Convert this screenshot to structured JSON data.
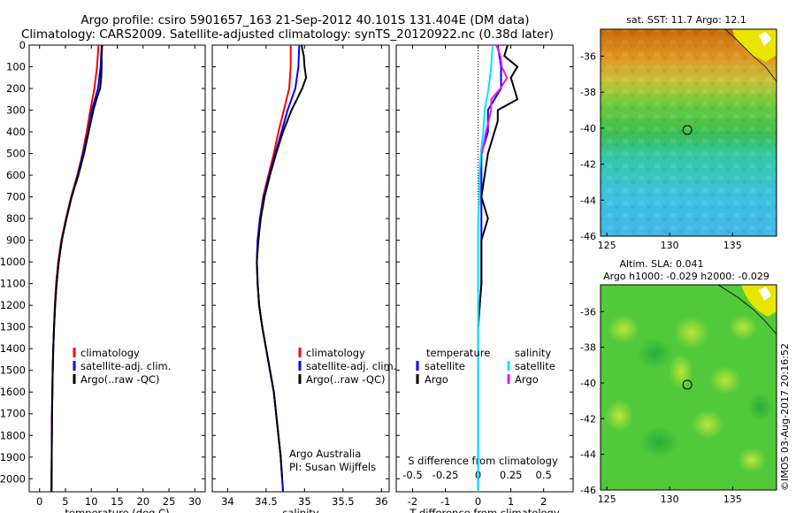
{
  "header": {
    "line1": "Argo profile: csiro 5901657_163 21-Sep-2012 40.101S 131.404E (DM data)",
    "line2": "Climatology: CARS2009. Satellite-adjusted climatology: synTS_20120922.nc (0.38d later)"
  },
  "colors": {
    "climatology": "#ff0000",
    "satellite": "#0000ff",
    "argo": "#000000",
    "sal_sat": "#00e5ff",
    "sal_argo": "#e619e6"
  },
  "legend_profile": [
    "climatology",
    "satellite-adj. clim.",
    "Argo(..raw -QC)"
  ],
  "legend_diff": {
    "temp_title": "temperature",
    "sal_title": "salinity",
    "satellite": "satellite",
    "argo": "Argo"
  },
  "credits": {
    "line1": "Argo Australia",
    "line2": "PI: Susan Wijffels"
  },
  "sst_title": "sat. SST: 11.7 Argo: 12.1",
  "sla_title1": "Altim. SLA: 0.041",
  "sla_title2": "Argo h1000: -0.029 h2000: -0.029",
  "stamp": "©IMOS 03-Aug-2017 20:16:52",
  "chart_data": [
    {
      "type": "line",
      "xlabel": "temperature (deg C)",
      "xticks": [
        0,
        5,
        10,
        15,
        20,
        25,
        30
      ],
      "xlim": [
        -2,
        32
      ],
      "yticks": [
        0,
        100,
        200,
        300,
        400,
        500,
        600,
        700,
        800,
        900,
        1000,
        1100,
        1200,
        1300,
        1400,
        1500,
        1600,
        1700,
        1800,
        1900,
        2000
      ],
      "ylim": [
        2060,
        0
      ],
      "series": [
        {
          "name": "climatology",
          "color": "#ff0000",
          "depth": [
            0,
            100,
            200,
            300,
            400,
            500,
            600,
            700,
            800,
            900,
            1000,
            1100,
            1200,
            1300,
            1400,
            1500,
            1700,
            2060
          ],
          "values": [
            11.4,
            11.1,
            10.6,
            9.8,
            9.1,
            8.3,
            7.3,
            6.1,
            5.1,
            4.2,
            3.6,
            3.2,
            2.95,
            2.8,
            2.65,
            2.55,
            2.4,
            2.3
          ]
        },
        {
          "name": "satellite-adj. clim.",
          "color": "#0000ff",
          "depth": [
            0,
            100,
            200,
            300,
            400,
            500,
            600,
            700,
            800,
            900,
            1000,
            1100,
            1200,
            1300,
            1400,
            1500,
            1700,
            2060
          ],
          "values": [
            12.0,
            11.8,
            11.3,
            10.1,
            9.4,
            8.4,
            7.4,
            6.2,
            5.2,
            4.3,
            3.7,
            3.3,
            3.0,
            2.8,
            2.65,
            2.55,
            2.4,
            2.3
          ]
        },
        {
          "name": "Argo(..raw -QC)",
          "color": "#000000",
          "depth": [
            0,
            50,
            100,
            150,
            200,
            250,
            300,
            400,
            500,
            600,
            700,
            800,
            900,
            1000,
            1100,
            1200,
            1300,
            1400,
            1500,
            1700,
            2060
          ],
          "values": [
            12.1,
            12.0,
            12.0,
            11.9,
            11.7,
            11.0,
            10.4,
            9.5,
            8.6,
            7.5,
            6.2,
            5.2,
            4.3,
            3.7,
            3.3,
            3.0,
            2.8,
            2.65,
            2.55,
            2.4,
            2.3
          ]
        }
      ]
    },
    {
      "type": "line",
      "xlabel": "salinity",
      "xticks": [
        34,
        34.5,
        35,
        35.5,
        36
      ],
      "xlim": [
        33.8,
        36.1
      ],
      "yticks": [
        0,
        100,
        200,
        300,
        400,
        500,
        600,
        700,
        800,
        900,
        1000,
        1100,
        1200,
        1300,
        1400,
        1500,
        1600,
        1700,
        1800,
        1900,
        2000
      ],
      "ylim": [
        2060,
        0
      ],
      "series": [
        {
          "name": "climatology",
          "color": "#ff0000",
          "depth": [
            0,
            100,
            200,
            300,
            400,
            500,
            600,
            700,
            800,
            900,
            1000,
            1100,
            1200,
            1300,
            1400,
            1500,
            1600,
            1700,
            1800,
            1900,
            2060
          ],
          "values": [
            34.82,
            34.82,
            34.8,
            34.73,
            34.66,
            34.6,
            34.53,
            34.46,
            34.42,
            34.39,
            34.38,
            34.39,
            34.41,
            34.45,
            34.5,
            34.55,
            34.6,
            34.63,
            34.66,
            34.69,
            34.72
          ]
        },
        {
          "name": "satellite-adj. clim.",
          "color": "#0000ff",
          "depth": [
            0,
            100,
            200,
            300,
            400,
            500,
            600,
            700,
            800,
            900,
            1000,
            1100,
            1200,
            1300,
            1400,
            1500,
            1600,
            1700,
            1800,
            1900,
            2060
          ],
          "values": [
            34.93,
            34.92,
            34.88,
            34.78,
            34.7,
            34.62,
            34.54,
            34.47,
            34.42,
            34.39,
            34.38,
            34.39,
            34.41,
            34.45,
            34.5,
            34.55,
            34.6,
            34.63,
            34.66,
            34.69,
            34.72
          ]
        },
        {
          "name": "Argo(..raw -QC)",
          "color": "#000000",
          "depth": [
            0,
            50,
            100,
            150,
            200,
            250,
            300,
            400,
            500,
            600,
            700,
            800,
            900,
            1000,
            1100,
            1200,
            1300,
            1400,
            1500,
            1600,
            1700,
            1800,
            1900,
            2000
          ],
          "values": [
            34.96,
            34.99,
            35.0,
            35.02,
            34.97,
            34.9,
            34.83,
            34.72,
            34.63,
            34.55,
            34.48,
            34.43,
            34.4,
            34.38,
            34.39,
            34.41,
            34.45,
            34.5,
            34.55,
            34.6,
            34.63,
            34.66,
            34.69,
            34.71
          ]
        }
      ]
    },
    {
      "type": "line",
      "xlabel": "T difference from climatology",
      "xlabel_top": "S difference from climatology",
      "xticks": [
        -2,
        -1,
        0,
        1,
        2
      ],
      "xlim": [
        -2.5,
        2.9
      ],
      "xticks_top": [
        -0.5,
        -0.25,
        0,
        0.25,
        0.5
      ],
      "yticks": [
        0,
        100,
        200,
        300,
        400,
        500,
        600,
        700,
        800,
        900,
        1000,
        1100,
        1200,
        1300,
        1400,
        1500,
        1600,
        1700,
        1800,
        1900,
        2000
      ],
      "ylim": [
        2060,
        0
      ],
      "series": [
        {
          "name": "temperature satellite",
          "color": "#0000ff",
          "depth": [
            0,
            100,
            200,
            300,
            400,
            500,
            600,
            700,
            800,
            900,
            1000,
            1100,
            1200,
            1300,
            1500,
            2060
          ],
          "values": [
            0.6,
            0.7,
            0.7,
            0.3,
            0.3,
            0.1,
            0.1,
            0.1,
            0.1,
            0.1,
            0.1,
            0.1,
            0.05,
            0.0,
            0.0,
            0.0
          ]
        },
        {
          "name": "temperature Argo",
          "color": "#000000",
          "depth": [
            0,
            50,
            100,
            150,
            200,
            250,
            300,
            350,
            400,
            500,
            600,
            700,
            800,
            900,
            1000,
            1100,
            1200,
            1300
          ],
          "values": [
            0.9,
            0.8,
            1.2,
            1.0,
            1.1,
            1.2,
            0.6,
            0.6,
            0.5,
            0.3,
            0.2,
            0.1,
            0.3,
            0.1,
            0.1,
            0.1,
            0.05,
            0.0
          ]
        },
        {
          "name": "salinity satellite",
          "color": "#00e5ff",
          "depth": [
            0,
            100,
            200,
            300,
            400,
            500,
            600,
            700,
            800,
            900,
            1000,
            1100,
            1200,
            1300,
            1500,
            2060
          ],
          "values": [
            0.11,
            0.1,
            0.08,
            0.05,
            0.04,
            0.02,
            0.01,
            0.01,
            0.0,
            0.0,
            0.0,
            0.0,
            0.0,
            0.0,
            0.0,
            0.0
          ]
        },
        {
          "name": "salinity Argo",
          "color": "#e619e6",
          "depth": [
            0,
            50,
            100,
            150,
            200,
            250,
            300,
            400,
            500
          ],
          "values": [
            0.14,
            0.17,
            0.18,
            0.22,
            0.17,
            0.1,
            0.1,
            0.06,
            0.03
          ]
        }
      ]
    },
    {
      "type": "heatmap",
      "title": "sat. SST: 11.7 Argo: 12.1",
      "xticks": [
        125,
        130,
        135
      ],
      "xlim": [
        124.5,
        138.5
      ],
      "yticks": [
        -36,
        -38,
        -40,
        -42,
        -44,
        -46
      ],
      "ylim": [
        -46,
        -34.5
      ],
      "marker": {
        "lon": 131.404,
        "lat": -40.101
      }
    },
    {
      "type": "heatmap",
      "title": "Altim. SLA: 0.041",
      "xticks": [
        125,
        130,
        135
      ],
      "xlim": [
        124.5,
        138.5
      ],
      "yticks": [
        -36,
        -38,
        -40,
        -42,
        -44,
        -46
      ],
      "ylim": [
        -46,
        -34.5
      ],
      "marker": {
        "lon": 131.404,
        "lat": -40.101
      }
    }
  ]
}
